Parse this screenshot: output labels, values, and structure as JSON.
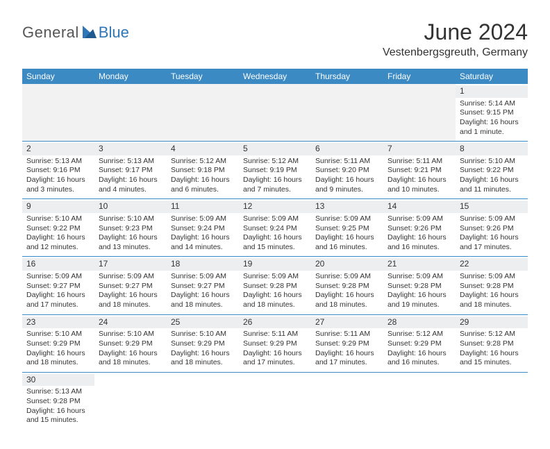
{
  "logo": {
    "text1": "General",
    "text2": "Blue",
    "sail_color": "#2f76b8"
  },
  "title": "June 2024",
  "subtitle": "Vestenbergsgreuth, Germany",
  "header_bg": "#3b8ac4",
  "header_text": "#ffffff",
  "daynum_bg": "#eceef0",
  "empty_bg": "#f2f2f2",
  "border_color": "#3b8ac4",
  "weekdays": [
    "Sunday",
    "Monday",
    "Tuesday",
    "Wednesday",
    "Thursday",
    "Friday",
    "Saturday"
  ],
  "weeks": [
    [
      null,
      null,
      null,
      null,
      null,
      null,
      {
        "d": "1",
        "sunrise": "Sunrise: 5:14 AM",
        "sunset": "Sunset: 9:15 PM",
        "daylight": "Daylight: 16 hours and 1 minute."
      }
    ],
    [
      {
        "d": "2",
        "sunrise": "Sunrise: 5:13 AM",
        "sunset": "Sunset: 9:16 PM",
        "daylight": "Daylight: 16 hours and 3 minutes."
      },
      {
        "d": "3",
        "sunrise": "Sunrise: 5:13 AM",
        "sunset": "Sunset: 9:17 PM",
        "daylight": "Daylight: 16 hours and 4 minutes."
      },
      {
        "d": "4",
        "sunrise": "Sunrise: 5:12 AM",
        "sunset": "Sunset: 9:18 PM",
        "daylight": "Daylight: 16 hours and 6 minutes."
      },
      {
        "d": "5",
        "sunrise": "Sunrise: 5:12 AM",
        "sunset": "Sunset: 9:19 PM",
        "daylight": "Daylight: 16 hours and 7 minutes."
      },
      {
        "d": "6",
        "sunrise": "Sunrise: 5:11 AM",
        "sunset": "Sunset: 9:20 PM",
        "daylight": "Daylight: 16 hours and 9 minutes."
      },
      {
        "d": "7",
        "sunrise": "Sunrise: 5:11 AM",
        "sunset": "Sunset: 9:21 PM",
        "daylight": "Daylight: 16 hours and 10 minutes."
      },
      {
        "d": "8",
        "sunrise": "Sunrise: 5:10 AM",
        "sunset": "Sunset: 9:22 PM",
        "daylight": "Daylight: 16 hours and 11 minutes."
      }
    ],
    [
      {
        "d": "9",
        "sunrise": "Sunrise: 5:10 AM",
        "sunset": "Sunset: 9:22 PM",
        "daylight": "Daylight: 16 hours and 12 minutes."
      },
      {
        "d": "10",
        "sunrise": "Sunrise: 5:10 AM",
        "sunset": "Sunset: 9:23 PM",
        "daylight": "Daylight: 16 hours and 13 minutes."
      },
      {
        "d": "11",
        "sunrise": "Sunrise: 5:09 AM",
        "sunset": "Sunset: 9:24 PM",
        "daylight": "Daylight: 16 hours and 14 minutes."
      },
      {
        "d": "12",
        "sunrise": "Sunrise: 5:09 AM",
        "sunset": "Sunset: 9:24 PM",
        "daylight": "Daylight: 16 hours and 15 minutes."
      },
      {
        "d": "13",
        "sunrise": "Sunrise: 5:09 AM",
        "sunset": "Sunset: 9:25 PM",
        "daylight": "Daylight: 16 hours and 16 minutes."
      },
      {
        "d": "14",
        "sunrise": "Sunrise: 5:09 AM",
        "sunset": "Sunset: 9:26 PM",
        "daylight": "Daylight: 16 hours and 16 minutes."
      },
      {
        "d": "15",
        "sunrise": "Sunrise: 5:09 AM",
        "sunset": "Sunset: 9:26 PM",
        "daylight": "Daylight: 16 hours and 17 minutes."
      }
    ],
    [
      {
        "d": "16",
        "sunrise": "Sunrise: 5:09 AM",
        "sunset": "Sunset: 9:27 PM",
        "daylight": "Daylight: 16 hours and 17 minutes."
      },
      {
        "d": "17",
        "sunrise": "Sunrise: 5:09 AM",
        "sunset": "Sunset: 9:27 PM",
        "daylight": "Daylight: 16 hours and 18 minutes."
      },
      {
        "d": "18",
        "sunrise": "Sunrise: 5:09 AM",
        "sunset": "Sunset: 9:27 PM",
        "daylight": "Daylight: 16 hours and 18 minutes."
      },
      {
        "d": "19",
        "sunrise": "Sunrise: 5:09 AM",
        "sunset": "Sunset: 9:28 PM",
        "daylight": "Daylight: 16 hours and 18 minutes."
      },
      {
        "d": "20",
        "sunrise": "Sunrise: 5:09 AM",
        "sunset": "Sunset: 9:28 PM",
        "daylight": "Daylight: 16 hours and 18 minutes."
      },
      {
        "d": "21",
        "sunrise": "Sunrise: 5:09 AM",
        "sunset": "Sunset: 9:28 PM",
        "daylight": "Daylight: 16 hours and 19 minutes."
      },
      {
        "d": "22",
        "sunrise": "Sunrise: 5:09 AM",
        "sunset": "Sunset: 9:28 PM",
        "daylight": "Daylight: 16 hours and 18 minutes."
      }
    ],
    [
      {
        "d": "23",
        "sunrise": "Sunrise: 5:10 AM",
        "sunset": "Sunset: 9:29 PM",
        "daylight": "Daylight: 16 hours and 18 minutes."
      },
      {
        "d": "24",
        "sunrise": "Sunrise: 5:10 AM",
        "sunset": "Sunset: 9:29 PM",
        "daylight": "Daylight: 16 hours and 18 minutes."
      },
      {
        "d": "25",
        "sunrise": "Sunrise: 5:10 AM",
        "sunset": "Sunset: 9:29 PM",
        "daylight": "Daylight: 16 hours and 18 minutes."
      },
      {
        "d": "26",
        "sunrise": "Sunrise: 5:11 AM",
        "sunset": "Sunset: 9:29 PM",
        "daylight": "Daylight: 16 hours and 17 minutes."
      },
      {
        "d": "27",
        "sunrise": "Sunrise: 5:11 AM",
        "sunset": "Sunset: 9:29 PM",
        "daylight": "Daylight: 16 hours and 17 minutes."
      },
      {
        "d": "28",
        "sunrise": "Sunrise: 5:12 AM",
        "sunset": "Sunset: 9:29 PM",
        "daylight": "Daylight: 16 hours and 16 minutes."
      },
      {
        "d": "29",
        "sunrise": "Sunrise: 5:12 AM",
        "sunset": "Sunset: 9:28 PM",
        "daylight": "Daylight: 16 hours and 15 minutes."
      }
    ],
    [
      {
        "d": "30",
        "sunrise": "Sunrise: 5:13 AM",
        "sunset": "Sunset: 9:28 PM",
        "daylight": "Daylight: 16 hours and 15 minutes."
      },
      null,
      null,
      null,
      null,
      null,
      null
    ]
  ]
}
